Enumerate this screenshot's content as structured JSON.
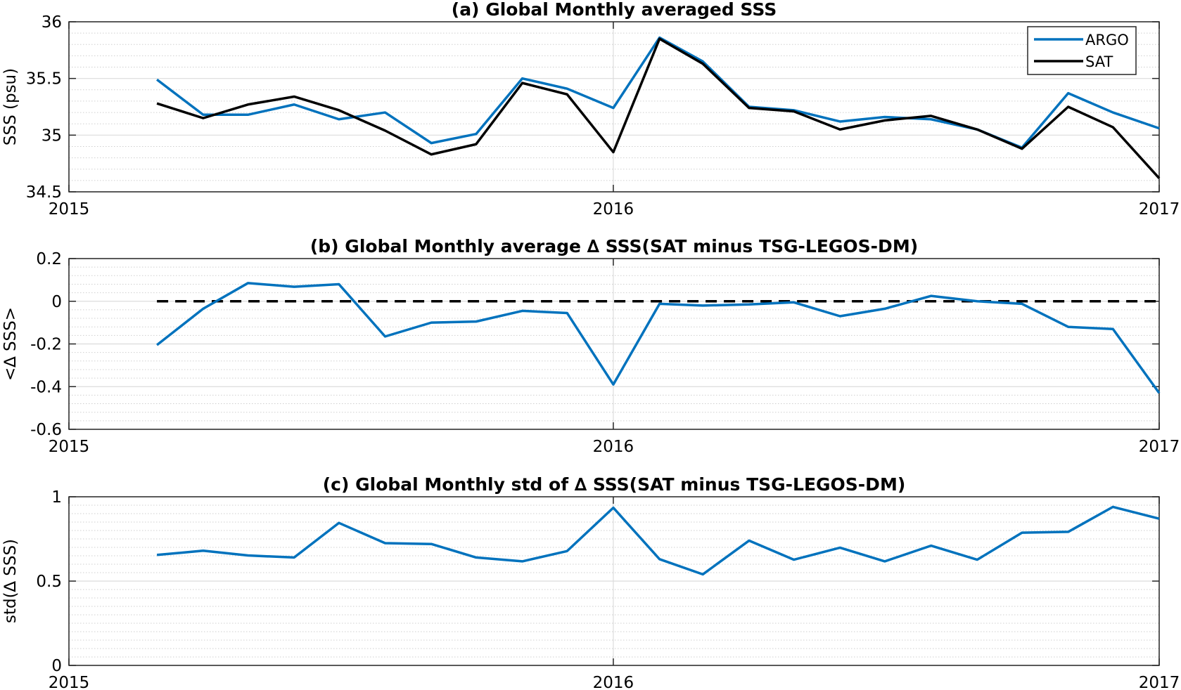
{
  "chart_data": [
    {
      "type": "line",
      "title": "(a) Global Monthly averaged SSS",
      "ylabel": "SSS (psu)",
      "xlabel": "",
      "xlim": [
        "2015-01-01",
        "2017-01-01"
      ],
      "ylim": [
        34.5,
        36
      ],
      "x_ticks": [
        "2015",
        "2016",
        "2017"
      ],
      "y_ticks": [
        "34.5",
        "35",
        "35.5",
        "36"
      ],
      "grid": true,
      "legend": "top-right",
      "x": [
        "2015-03-01",
        "2015-04-01",
        "2015-05-01",
        "2015-06-01",
        "2015-07-01",
        "2015-08-01",
        "2015-09-01",
        "2015-10-01",
        "2015-11-01",
        "2015-12-01",
        "2016-01-01",
        "2016-02-01",
        "2016-03-01",
        "2016-04-01",
        "2016-05-01",
        "2016-06-01",
        "2016-07-01",
        "2016-08-01",
        "2016-09-01",
        "2016-10-01",
        "2016-11-01",
        "2016-12-01",
        "2017-01-01"
      ],
      "series": [
        {
          "name": "ARGO",
          "color": "#0072BD",
          "values": [
            35.49,
            35.18,
            35.18,
            35.27,
            35.14,
            35.2,
            34.93,
            35.01,
            35.5,
            35.41,
            35.24,
            35.86,
            35.65,
            35.25,
            35.22,
            35.12,
            35.16,
            35.14,
            35.05,
            34.89,
            35.37,
            35.2,
            35.06
          ]
        },
        {
          "name": "SAT",
          "color": "#000000",
          "values": [
            35.28,
            35.15,
            35.27,
            35.34,
            35.22,
            35.04,
            34.83,
            34.92,
            35.46,
            35.36,
            34.85,
            35.85,
            35.63,
            35.24,
            35.21,
            35.05,
            35.13,
            35.17,
            35.05,
            34.88,
            35.25,
            35.07,
            34.62
          ]
        }
      ]
    },
    {
      "type": "line",
      "title": "(b) Global Monthly average ∆ SSS(SAT minus TSG-LEGOS-DM)",
      "ylabel": "<∆ SSS>",
      "xlabel": "",
      "xlim": [
        "2015-01-01",
        "2017-01-01"
      ],
      "ylim": [
        -0.6,
        0.2
      ],
      "x_ticks": [
        "2015",
        "2016",
        "2017"
      ],
      "y_ticks": [
        "-0.6",
        "-0.4",
        "-0.2",
        "0",
        "0.2"
      ],
      "grid": true,
      "x": [
        "2015-03-01",
        "2015-04-01",
        "2015-05-01",
        "2015-06-01",
        "2015-07-01",
        "2015-08-01",
        "2015-09-01",
        "2015-10-01",
        "2015-11-01",
        "2015-12-01",
        "2016-01-01",
        "2016-02-01",
        "2016-03-01",
        "2016-04-01",
        "2016-05-01",
        "2016-06-01",
        "2016-07-01",
        "2016-08-01",
        "2016-09-01",
        "2016-10-01",
        "2016-11-01",
        "2016-12-01",
        "2017-01-01"
      ],
      "reference_line": {
        "y": 0,
        "style": "dashed",
        "from": "2015-03-01",
        "to": "2017-01-01",
        "color": "#000000"
      },
      "series": [
        {
          "color": "#0072BD",
          "values": [
            -0.205,
            -0.035,
            0.085,
            0.068,
            0.08,
            -0.165,
            -0.1,
            -0.095,
            -0.045,
            -0.055,
            -0.39,
            -0.012,
            -0.02,
            -0.015,
            -0.005,
            -0.07,
            -0.035,
            0.025,
            0.0,
            -0.012,
            -0.12,
            -0.13,
            -0.43
          ]
        }
      ]
    },
    {
      "type": "line",
      "title": "(c) Global Monthly std of ∆ SSS(SAT minus TSG-LEGOS-DM)",
      "ylabel": "std(∆ SSS)",
      "xlabel": "",
      "xlim": [
        "2015-01-01",
        "2017-01-01"
      ],
      "ylim": [
        0,
        1
      ],
      "x_ticks": [
        "2015",
        "2016",
        "2017"
      ],
      "y_ticks": [
        "0",
        "0.5",
        "1"
      ],
      "grid": true,
      "x": [
        "2015-03-01",
        "2015-04-01",
        "2015-05-01",
        "2015-06-01",
        "2015-07-01",
        "2015-08-01",
        "2015-09-01",
        "2015-10-01",
        "2015-11-01",
        "2015-12-01",
        "2016-01-01",
        "2016-02-01",
        "2016-03-01",
        "2016-04-01",
        "2016-05-01",
        "2016-06-01",
        "2016-07-01",
        "2016-08-01",
        "2016-09-01",
        "2016-10-01",
        "2016-11-01",
        "2016-12-01",
        "2017-01-01"
      ],
      "series": [
        {
          "color": "#0072BD",
          "values": [
            0.655,
            0.68,
            0.652,
            0.64,
            0.845,
            0.725,
            0.72,
            0.64,
            0.617,
            0.678,
            0.935,
            0.63,
            0.54,
            0.74,
            0.627,
            0.698,
            0.617,
            0.71,
            0.627,
            0.787,
            0.792,
            0.94,
            0.87
          ]
        }
      ]
    }
  ]
}
